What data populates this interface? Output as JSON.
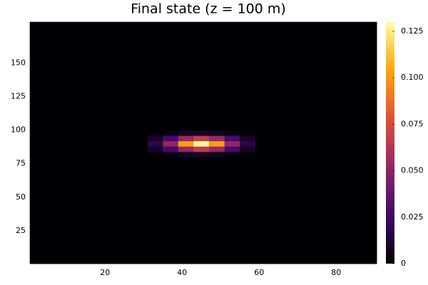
{
  "chart_data": {
    "type": "heatmap",
    "title": "Final state (z = 100 m)",
    "xbins": [
      0.5,
      31,
      35,
      39,
      43,
      47,
      51,
      55,
      59,
      90.5
    ],
    "ybins": [
      0.5,
      80,
      84,
      88,
      92,
      96,
      100,
      180.5
    ],
    "z": [
      [
        0,
        0,
        0,
        0,
        0,
        0,
        0,
        0,
        0
      ],
      [
        0,
        0.001,
        0.004,
        0.007,
        0.009,
        0.007,
        0.004,
        0.001,
        0
      ],
      [
        0,
        0.009,
        0.027,
        0.053,
        0.067,
        0.053,
        0.027,
        0.009,
        0
      ],
      [
        0,
        0.017,
        0.052,
        0.102,
        0.128,
        0.102,
        0.052,
        0.017,
        0
      ],
      [
        0,
        0.009,
        0.027,
        0.053,
        0.067,
        0.053,
        0.027,
        0.009,
        0
      ],
      [
        0,
        0.001,
        0.004,
        0.007,
        0.009,
        0.007,
        0.004,
        0.001,
        0
      ],
      [
        0,
        0,
        0,
        0,
        0,
        0,
        0,
        0,
        0
      ]
    ],
    "xlim": [
      0.5,
      90.5
    ],
    "xticks": [
      20,
      40,
      60,
      80
    ],
    "ylim": [
      0.5,
      180.5
    ],
    "yticks": [
      25,
      50,
      75,
      100,
      125,
      150
    ],
    "clim": [
      0,
      0.13
    ],
    "cticks": [
      0,
      0.025,
      {
        "value": 0.05,
        "label": "0.050"
      },
      0.075,
      {
        "value": 0.1,
        "label": "0.100"
      },
      0.125
    ],
    "colormap": [
      "#000004",
      "#420a68",
      "#932667",
      "#dd513a",
      "#fca50a",
      "#fcffa4"
    ]
  }
}
